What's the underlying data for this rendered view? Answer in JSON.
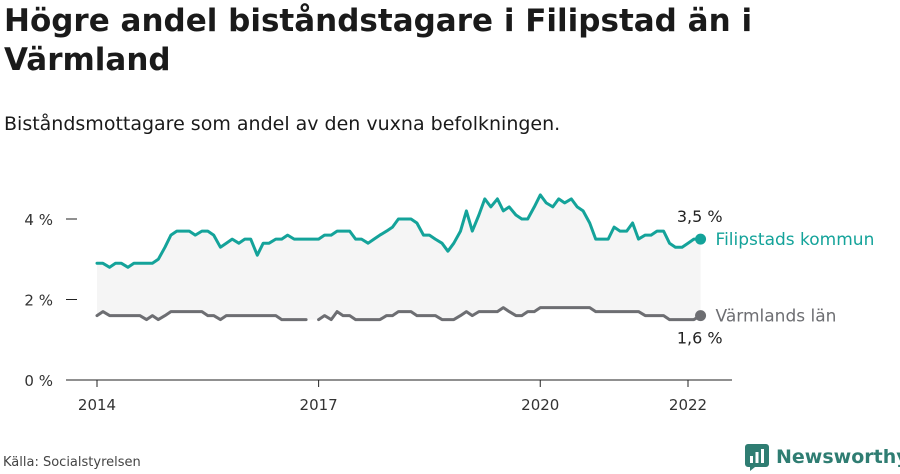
{
  "title": "Högre andel biståndstagare i Filipstad än i Värmland",
  "subtitle": "Biståndsmottagare som andel av den vuxna befolkningen.",
  "source": "Källa: Socialstyrelsen",
  "brand": "Newsworthy",
  "colors": {
    "filipstad": "#14a39a",
    "varmland": "#6d6e72",
    "band": "#f5f5f5",
    "axis": "#222222"
  },
  "chart_data": {
    "type": "line",
    "title": "Högre andel biståndstagare i Filipstad än i Värmland",
    "subtitle": "Biståndsmottagare som andel av den vuxna befolkningen.",
    "xlabel": "",
    "ylabel": "",
    "xlim": [
      2014,
      2022.2
    ],
    "ylim": [
      0,
      4.5
    ],
    "x_ticks": [
      2014,
      2017,
      2020,
      2022
    ],
    "x_tick_labels": [
      "2014",
      "2017",
      "2020",
      "2022"
    ],
    "y_ticks": [
      0,
      2,
      4
    ],
    "y_tick_labels": [
      "0 %",
      "2 %",
      "4 %"
    ],
    "grid": false,
    "shaded_band_between_series": true,
    "series": [
      {
        "name": "Filipstads kommun",
        "end_label": "3,5 %",
        "color": "#14a39a",
        "points": [
          [
            2014.0,
            2.9
          ],
          [
            2014.08,
            2.9
          ],
          [
            2014.17,
            2.8
          ],
          [
            2014.25,
            2.9
          ],
          [
            2014.33,
            2.9
          ],
          [
            2014.42,
            2.8
          ],
          [
            2014.5,
            2.9
          ],
          [
            2014.58,
            2.9
          ],
          [
            2014.67,
            2.9
          ],
          [
            2014.75,
            2.9
          ],
          [
            2014.83,
            3.0
          ],
          [
            2014.92,
            3.3
          ],
          [
            2015.0,
            3.6
          ],
          [
            2015.08,
            3.7
          ],
          [
            2015.17,
            3.7
          ],
          [
            2015.25,
            3.7
          ],
          [
            2015.33,
            3.6
          ],
          [
            2015.42,
            3.7
          ],
          [
            2015.5,
            3.7
          ],
          [
            2015.58,
            3.6
          ],
          [
            2015.67,
            3.3
          ],
          [
            2015.75,
            3.4
          ],
          [
            2015.83,
            3.5
          ],
          [
            2015.92,
            3.4
          ],
          [
            2016.0,
            3.5
          ],
          [
            2016.08,
            3.5
          ],
          [
            2016.17,
            3.1
          ],
          [
            2016.25,
            3.4
          ],
          [
            2016.33,
            3.4
          ],
          [
            2016.42,
            3.5
          ],
          [
            2016.5,
            3.5
          ],
          [
            2016.58,
            3.6
          ],
          [
            2016.67,
            3.5
          ],
          [
            2016.75,
            3.5
          ],
          [
            2016.83,
            3.5
          ],
          [
            2016.92,
            3.5
          ],
          [
            2017.0,
            3.5
          ],
          [
            2017.08,
            3.6
          ],
          [
            2017.17,
            3.6
          ],
          [
            2017.25,
            3.7
          ],
          [
            2017.33,
            3.7
          ],
          [
            2017.42,
            3.7
          ],
          [
            2017.5,
            3.5
          ],
          [
            2017.58,
            3.5
          ],
          [
            2017.67,
            3.4
          ],
          [
            2017.75,
            3.5
          ],
          [
            2017.83,
            3.6
          ],
          [
            2017.92,
            3.7
          ],
          [
            2018.0,
            3.8
          ],
          [
            2018.08,
            4.0
          ],
          [
            2018.17,
            4.0
          ],
          [
            2018.25,
            4.0
          ],
          [
            2018.33,
            3.9
          ],
          [
            2018.42,
            3.6
          ],
          [
            2018.5,
            3.6
          ],
          [
            2018.58,
            3.5
          ],
          [
            2018.67,
            3.4
          ],
          [
            2018.75,
            3.2
          ],
          [
            2018.83,
            3.4
          ],
          [
            2018.92,
            3.7
          ],
          [
            2019.0,
            4.2
          ],
          [
            2019.08,
            3.7
          ],
          [
            2019.17,
            4.1
          ],
          [
            2019.25,
            4.5
          ],
          [
            2019.33,
            4.3
          ],
          [
            2019.42,
            4.5
          ],
          [
            2019.5,
            4.2
          ],
          [
            2019.58,
            4.3
          ],
          [
            2019.67,
            4.1
          ],
          [
            2019.75,
            4.0
          ],
          [
            2019.83,
            4.0
          ],
          [
            2019.92,
            4.3
          ],
          [
            2020.0,
            4.6
          ],
          [
            2020.08,
            4.4
          ],
          [
            2020.17,
            4.3
          ],
          [
            2020.25,
            4.5
          ],
          [
            2020.33,
            4.4
          ],
          [
            2020.42,
            4.5
          ],
          [
            2020.5,
            4.3
          ],
          [
            2020.58,
            4.2
          ],
          [
            2020.67,
            3.9
          ],
          [
            2020.75,
            3.5
          ],
          [
            2020.83,
            3.5
          ],
          [
            2020.92,
            3.5
          ],
          [
            2021.0,
            3.8
          ],
          [
            2021.08,
            3.7
          ],
          [
            2021.17,
            3.7
          ],
          [
            2021.25,
            3.9
          ],
          [
            2021.33,
            3.5
          ],
          [
            2021.42,
            3.6
          ],
          [
            2021.5,
            3.6
          ],
          [
            2021.58,
            3.7
          ],
          [
            2021.67,
            3.7
          ],
          [
            2021.75,
            3.4
          ],
          [
            2021.83,
            3.3
          ],
          [
            2021.92,
            3.3
          ],
          [
            2022.0,
            3.4
          ],
          [
            2022.08,
            3.5
          ],
          [
            2022.17,
            3.5
          ]
        ]
      },
      {
        "name": "Värmlands län",
        "end_label": "1,6 %",
        "color": "#6d6e72",
        "points": [
          [
            2014.0,
            1.6
          ],
          [
            2014.08,
            1.7
          ],
          [
            2014.17,
            1.6
          ],
          [
            2014.25,
            1.6
          ],
          [
            2014.33,
            1.6
          ],
          [
            2014.42,
            1.6
          ],
          [
            2014.5,
            1.6
          ],
          [
            2014.58,
            1.6
          ],
          [
            2014.67,
            1.5
          ],
          [
            2014.75,
            1.6
          ],
          [
            2014.83,
            1.5
          ],
          [
            2014.92,
            1.6
          ],
          [
            2015.0,
            1.7
          ],
          [
            2015.08,
            1.7
          ],
          [
            2015.17,
            1.7
          ],
          [
            2015.25,
            1.7
          ],
          [
            2015.33,
            1.7
          ],
          [
            2015.42,
            1.7
          ],
          [
            2015.5,
            1.6
          ],
          [
            2015.58,
            1.6
          ],
          [
            2015.67,
            1.5
          ],
          [
            2015.75,
            1.6
          ],
          [
            2015.83,
            1.6
          ],
          [
            2015.92,
            1.6
          ],
          [
            2016.0,
            1.6
          ],
          [
            2016.08,
            1.6
          ],
          [
            2016.17,
            1.6
          ],
          [
            2016.25,
            1.6
          ],
          [
            2016.33,
            1.6
          ],
          [
            2016.42,
            1.6
          ],
          [
            2016.5,
            1.5
          ],
          [
            2016.58,
            1.5
          ],
          [
            2016.67,
            1.5
          ],
          [
            2016.75,
            1.5
          ],
          [
            2016.83,
            1.5
          ],
          null,
          [
            2017.0,
            1.5
          ],
          [
            2017.08,
            1.6
          ],
          [
            2017.17,
            1.5
          ],
          [
            2017.25,
            1.7
          ],
          [
            2017.33,
            1.6
          ],
          [
            2017.42,
            1.6
          ],
          [
            2017.5,
            1.5
          ],
          [
            2017.58,
            1.5
          ],
          [
            2017.67,
            1.5
          ],
          [
            2017.75,
            1.5
          ],
          [
            2017.83,
            1.5
          ],
          [
            2017.92,
            1.6
          ],
          [
            2018.0,
            1.6
          ],
          [
            2018.08,
            1.7
          ],
          [
            2018.17,
            1.7
          ],
          [
            2018.25,
            1.7
          ],
          [
            2018.33,
            1.6
          ],
          [
            2018.42,
            1.6
          ],
          [
            2018.5,
            1.6
          ],
          [
            2018.58,
            1.6
          ],
          [
            2018.67,
            1.5
          ],
          [
            2018.75,
            1.5
          ],
          [
            2018.83,
            1.5
          ],
          [
            2018.92,
            1.6
          ],
          [
            2019.0,
            1.7
          ],
          [
            2019.08,
            1.6
          ],
          [
            2019.17,
            1.7
          ],
          [
            2019.25,
            1.7
          ],
          [
            2019.33,
            1.7
          ],
          [
            2019.42,
            1.7
          ],
          [
            2019.5,
            1.8
          ],
          [
            2019.58,
            1.7
          ],
          [
            2019.67,
            1.6
          ],
          [
            2019.75,
            1.6
          ],
          [
            2019.83,
            1.7
          ],
          [
            2019.92,
            1.7
          ],
          [
            2020.0,
            1.8
          ],
          [
            2020.08,
            1.8
          ],
          [
            2020.17,
            1.8
          ],
          [
            2020.25,
            1.8
          ],
          [
            2020.33,
            1.8
          ],
          [
            2020.42,
            1.8
          ],
          [
            2020.5,
            1.8
          ],
          [
            2020.58,
            1.8
          ],
          [
            2020.67,
            1.8
          ],
          [
            2020.75,
            1.7
          ],
          [
            2020.83,
            1.7
          ],
          [
            2020.92,
            1.7
          ],
          [
            2021.0,
            1.7
          ],
          [
            2021.08,
            1.7
          ],
          [
            2021.17,
            1.7
          ],
          [
            2021.25,
            1.7
          ],
          [
            2021.33,
            1.7
          ],
          [
            2021.42,
            1.6
          ],
          [
            2021.5,
            1.6
          ],
          [
            2021.58,
            1.6
          ],
          [
            2021.67,
            1.6
          ],
          [
            2021.75,
            1.5
          ],
          [
            2021.83,
            1.5
          ],
          [
            2021.92,
            1.5
          ],
          [
            2022.0,
            1.5
          ],
          [
            2022.08,
            1.5
          ],
          [
            2022.17,
            1.6
          ]
        ]
      }
    ]
  }
}
